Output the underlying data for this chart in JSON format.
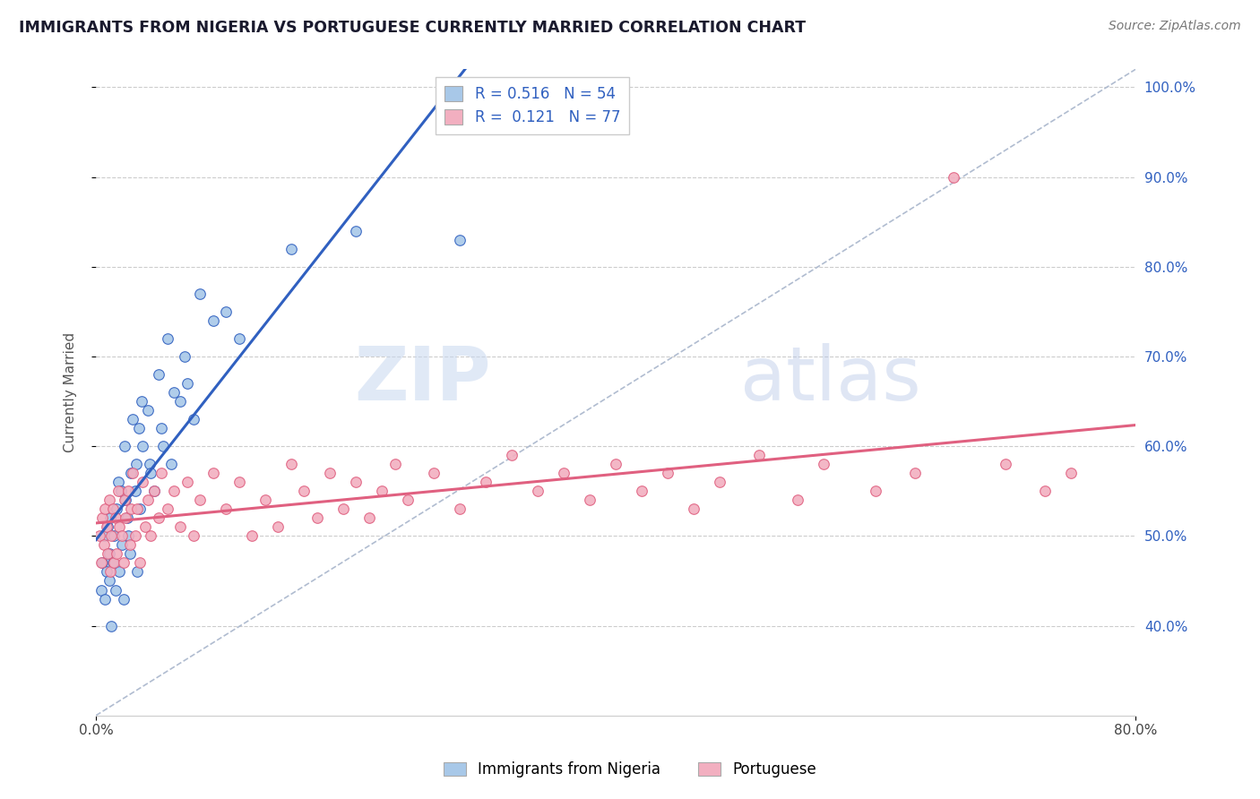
{
  "title": "IMMIGRANTS FROM NIGERIA VS PORTUGUESE CURRENTLY MARRIED CORRELATION CHART",
  "source_text": "Source: ZipAtlas.com",
  "ylabel": "Currently Married",
  "xlim": [
    0.0,
    0.8
  ],
  "ylim": [
    0.3,
    1.02
  ],
  "y_ticks": [
    0.4,
    0.5,
    0.6,
    0.7,
    0.8,
    0.9,
    1.0
  ],
  "y_tick_labels": [
    "40.0%",
    "50.0%",
    "60.0%",
    "70.0%",
    "80.0%",
    "90.0%",
    "100.0%"
  ],
  "legend_label1": "Immigrants from Nigeria",
  "legend_label2": "Portuguese",
  "R1": 0.516,
  "N1": 54,
  "R2": 0.121,
  "N2": 77,
  "color_nigeria": "#a8c8e8",
  "color_portuguese": "#f2afc0",
  "color_line_nigeria": "#3060c0",
  "color_line_portuguese": "#e06080",
  "color_ref_line": "#b0bcd0",
  "watermark_zip": "ZIP",
  "watermark_atlas": "atlas",
  "nigeria_x": [
    0.004,
    0.005,
    0.006,
    0.007,
    0.008,
    0.009,
    0.01,
    0.01,
    0.011,
    0.012,
    0.013,
    0.014,
    0.015,
    0.016,
    0.017,
    0.018,
    0.019,
    0.02,
    0.021,
    0.022,
    0.023,
    0.024,
    0.025,
    0.026,
    0.027,
    0.028,
    0.03,
    0.031,
    0.032,
    0.033,
    0.034,
    0.035,
    0.036,
    0.04,
    0.041,
    0.042,
    0.045,
    0.048,
    0.05,
    0.052,
    0.055,
    0.058,
    0.06,
    0.065,
    0.068,
    0.07,
    0.075,
    0.08,
    0.09,
    0.1,
    0.11,
    0.15,
    0.2,
    0.28
  ],
  "nigeria_y": [
    0.44,
    0.47,
    0.5,
    0.43,
    0.46,
    0.51,
    0.45,
    0.48,
    0.52,
    0.4,
    0.47,
    0.5,
    0.44,
    0.53,
    0.56,
    0.46,
    0.55,
    0.49,
    0.43,
    0.6,
    0.54,
    0.52,
    0.5,
    0.48,
    0.57,
    0.63,
    0.55,
    0.58,
    0.46,
    0.62,
    0.53,
    0.65,
    0.6,
    0.64,
    0.58,
    0.57,
    0.55,
    0.68,
    0.62,
    0.6,
    0.72,
    0.58,
    0.66,
    0.65,
    0.7,
    0.67,
    0.63,
    0.77,
    0.74,
    0.75,
    0.72,
    0.82,
    0.84,
    0.83
  ],
  "portuguese_x": [
    0.003,
    0.004,
    0.005,
    0.006,
    0.007,
    0.008,
    0.009,
    0.01,
    0.011,
    0.012,
    0.013,
    0.014,
    0.015,
    0.016,
    0.017,
    0.018,
    0.02,
    0.021,
    0.022,
    0.023,
    0.025,
    0.026,
    0.027,
    0.028,
    0.03,
    0.032,
    0.034,
    0.036,
    0.038,
    0.04,
    0.042,
    0.045,
    0.048,
    0.05,
    0.055,
    0.06,
    0.065,
    0.07,
    0.075,
    0.08,
    0.09,
    0.1,
    0.11,
    0.12,
    0.13,
    0.14,
    0.15,
    0.16,
    0.17,
    0.18,
    0.19,
    0.2,
    0.21,
    0.22,
    0.23,
    0.24,
    0.26,
    0.28,
    0.3,
    0.32,
    0.34,
    0.36,
    0.38,
    0.4,
    0.42,
    0.44,
    0.46,
    0.48,
    0.51,
    0.54,
    0.56,
    0.6,
    0.63,
    0.66,
    0.7,
    0.73,
    0.75
  ],
  "portuguese_y": [
    0.5,
    0.47,
    0.52,
    0.49,
    0.53,
    0.51,
    0.48,
    0.54,
    0.46,
    0.5,
    0.53,
    0.47,
    0.52,
    0.48,
    0.55,
    0.51,
    0.5,
    0.47,
    0.54,
    0.52,
    0.55,
    0.49,
    0.53,
    0.57,
    0.5,
    0.53,
    0.47,
    0.56,
    0.51,
    0.54,
    0.5,
    0.55,
    0.52,
    0.57,
    0.53,
    0.55,
    0.51,
    0.56,
    0.5,
    0.54,
    0.57,
    0.53,
    0.56,
    0.5,
    0.54,
    0.51,
    0.58,
    0.55,
    0.52,
    0.57,
    0.53,
    0.56,
    0.52,
    0.55,
    0.58,
    0.54,
    0.57,
    0.53,
    0.56,
    0.59,
    0.55,
    0.57,
    0.54,
    0.58,
    0.55,
    0.57,
    0.53,
    0.56,
    0.59,
    0.54,
    0.58,
    0.55,
    0.57,
    0.9,
    0.58,
    0.55,
    0.57
  ]
}
